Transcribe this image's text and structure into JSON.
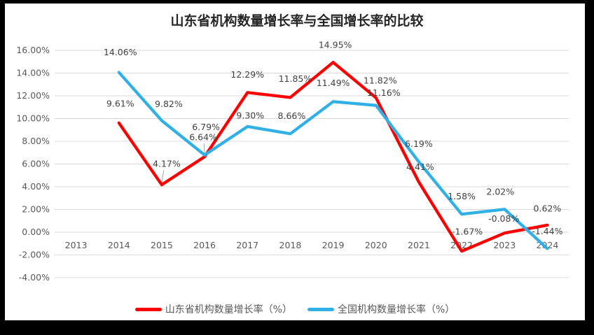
{
  "window": {
    "frame_color": "#000000",
    "panel_color": "#ffffff"
  },
  "chart_data": {
    "type": "line",
    "title": "山东省机构数量增长率与全国增长率的比较",
    "categories": [
      "2013",
      "2014",
      "2015",
      "2016",
      "2017",
      "2018",
      "2019",
      "2020",
      "2021",
      "2022",
      "2023",
      "2024"
    ],
    "y_axis": {
      "min": -4,
      "max": 16,
      "step": 2,
      "tick_labels": [
        "16.00%",
        "14.00%",
        "12.00%",
        "10.00%",
        "8.00%",
        "6.00%",
        "4.00%",
        "2.00%",
        "0.00%",
        "-2.00%",
        "-4.00%"
      ]
    },
    "grid": true,
    "legend_position": "bottom",
    "data_labels": true,
    "series": [
      {
        "name": "山东省机构数量增长率（%）",
        "color": "#FF0000",
        "values": [
          null,
          9.61,
          4.17,
          6.64,
          12.29,
          11.85,
          14.95,
          11.82,
          4.41,
          -1.67,
          -0.08,
          0.62
        ]
      },
      {
        "name": "全国机构数量增长率（%）",
        "color": "#31B0E6",
        "values": [
          null,
          14.06,
          9.82,
          6.79,
          9.3,
          8.66,
          11.49,
          11.16,
          6.19,
          1.58,
          2.02,
          -1.44
        ]
      }
    ],
    "colors": {
      "gridline": "#D9D9D9",
      "axis_text": "#595959",
      "data_label_text": "#404040",
      "leader_line": "#A6A6A6"
    }
  }
}
